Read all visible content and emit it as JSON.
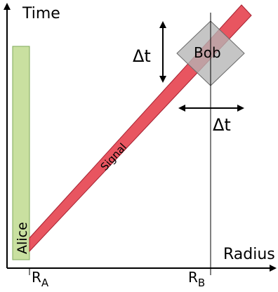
{
  "axes": {
    "y_label": "Time",
    "x_label": "Radius",
    "tick_ra_main": "R",
    "tick_ra_sub": "A",
    "tick_rb_main": "R",
    "tick_rb_sub": "B"
  },
  "labels": {
    "alice": "Alice",
    "signal": "Signal",
    "bob": "Bob",
    "delta_t_vertical": "Δt",
    "delta_t_horizontal": "Δt"
  },
  "colors": {
    "alice_fill": "#c9e0a0",
    "alice_stroke": "#7fa85a",
    "signal_fill": "#e85560",
    "signal_stroke": "#a52030",
    "bob_fill": "#b5b5b5",
    "bob_stroke": "#6a6a6a",
    "axis": "#000000"
  }
}
